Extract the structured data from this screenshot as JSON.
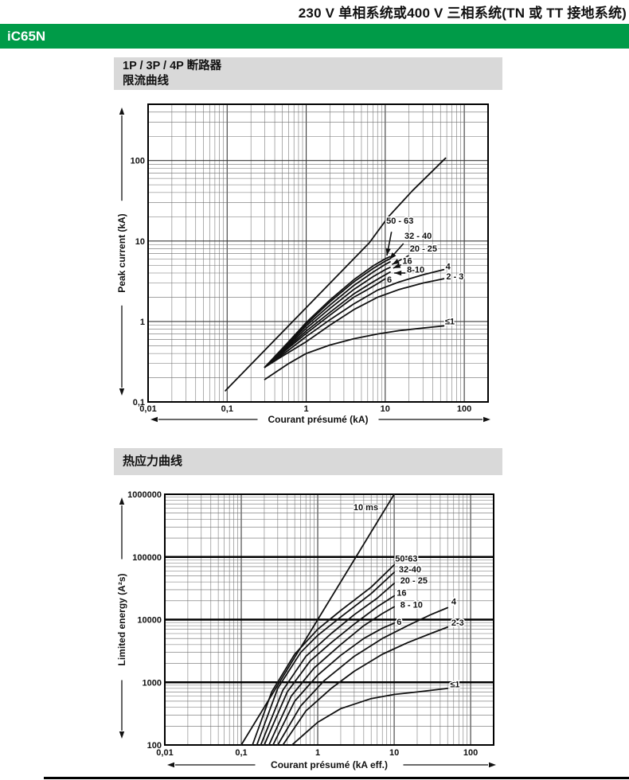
{
  "page": {
    "top_title": "230 V 单相系统或400 V 三相系统(TN 或 TT 接地系统)",
    "product_banner": "iC65N",
    "section1_title_line1": "1P / 3P / 4P 断路器",
    "section1_title_line2": "限流曲线",
    "section2_title": "热应力曲线",
    "colors": {
      "brand_green": "#009b48",
      "header_gray": "#d9d9d9",
      "curve_black": "#111111",
      "grid_minor": "#6e6e6e",
      "grid_major": "#3a3a3a"
    }
  },
  "chart_data": [
    {
      "type": "line",
      "title": "限流曲线 (current limiting curves)",
      "xlabel": "Courant présumé (kA)",
      "ylabel": "Peak current (kA)",
      "xscale": "log",
      "yscale": "log",
      "xlim": [
        0.01,
        200
      ],
      "ylim": [
        0.1,
        500
      ],
      "grid": true,
      "xticks": [
        {
          "v": 0.01,
          "label": "0,01"
        },
        {
          "v": 0.1,
          "label": "0,1"
        },
        {
          "v": 1,
          "label": "1"
        },
        {
          "v": 10,
          "label": "10"
        },
        {
          "v": 100,
          "label": "100"
        }
      ],
      "yticks": [
        {
          "v": 100,
          "label": "100"
        },
        {
          "v": 10,
          "label": "10"
        },
        {
          "v": 1,
          "label": "1"
        },
        {
          "v": 0.1,
          "label": "0,1"
        }
      ],
      "series": [
        {
          "name": "prospective-peak",
          "points": [
            [
              0.095,
              0.138
            ],
            [
              6.3,
              9.5
            ],
            [
              11,
              20
            ],
            [
              22,
              42
            ],
            [
              58,
              107
            ]
          ]
        },
        {
          "name": "50-63",
          "points": [
            [
              0.3,
              0.27
            ],
            [
              0.6,
              0.56
            ],
            [
              1,
              0.97
            ],
            [
              2,
              1.85
            ],
            [
              4,
              3.3
            ],
            [
              7,
              4.9
            ],
            [
              10,
              6.0
            ],
            [
              11.5,
              6.4
            ]
          ],
          "label": {
            "text": "50 - 63",
            "x": 10.3,
            "y": 16.5,
            "anchor": "start"
          },
          "arrow": [
            [
              12.0,
              13.0
            ],
            [
              10.5,
              6.6
            ]
          ]
        },
        {
          "name": "32-40",
          "points": [
            [
              0.3,
              0.27
            ],
            [
              0.6,
              0.55
            ],
            [
              1,
              0.93
            ],
            [
              2,
              1.75
            ],
            [
              4,
              3.1
            ],
            [
              7,
              4.55
            ],
            [
              10,
              5.6
            ],
            [
              11.5,
              6.0
            ]
          ],
          "label": {
            "text": "32 - 40",
            "x": 17.5,
            "y": 10.6,
            "anchor": "start"
          },
          "arrow": [
            [
              17.0,
              9.3
            ],
            [
              11.3,
              5.9
            ]
          ]
        },
        {
          "name": "20-25",
          "points": [
            [
              0.3,
              0.27
            ],
            [
              0.6,
              0.53
            ],
            [
              1,
              0.88
            ],
            [
              2,
              1.6
            ],
            [
              4,
              2.8
            ],
            [
              7,
              4.1
            ],
            [
              10,
              5.1
            ],
            [
              11.5,
              5.5
            ]
          ],
          "label": {
            "text": "20 - 25",
            "x": 20.5,
            "y": 7.4,
            "anchor": "start"
          },
          "arrow": [
            [
              19.8,
              6.6
            ],
            [
              12.2,
              5.1
            ]
          ]
        },
        {
          "name": "16",
          "points": [
            [
              0.3,
              0.27
            ],
            [
              0.6,
              0.51
            ],
            [
              1,
              0.82
            ],
            [
              2,
              1.45
            ],
            [
              4,
              2.5
            ],
            [
              7,
              3.6
            ],
            [
              10,
              4.4
            ],
            [
              11.5,
              4.7
            ]
          ],
          "label": {
            "text": "16",
            "x": 16.5,
            "y": 5.2,
            "anchor": "start"
          },
          "arrow": [
            [
              15.9,
              5.05
            ],
            [
              12.6,
              4.6
            ]
          ]
        },
        {
          "name": "8-10",
          "points": [
            [
              0.3,
              0.27
            ],
            [
              0.6,
              0.49
            ],
            [
              1,
              0.76
            ],
            [
              2,
              1.3
            ],
            [
              4,
              2.2
            ],
            [
              7,
              3.1
            ],
            [
              10,
              3.8
            ],
            [
              11.5,
              4.1
            ]
          ],
          "label": {
            "text": "8-10",
            "x": 18.8,
            "y": 4.05,
            "anchor": "start"
          },
          "arrow": [
            [
              18.0,
              4.0
            ],
            [
              13.0,
              4.0
            ]
          ]
        },
        {
          "name": "6",
          "points": [
            [
              0.3,
              0.27
            ],
            [
              0.6,
              0.47
            ],
            [
              1,
              0.71
            ],
            [
              2,
              1.2
            ],
            [
              4,
              2.0
            ],
            [
              6,
              2.5
            ],
            [
              8,
              2.95
            ],
            [
              10,
              3.4
            ]
          ],
          "label": {
            "text": "6",
            "x": 11.3,
            "y": 3.05,
            "anchor": "middle"
          }
        },
        {
          "name": "4",
          "points": [
            [
              0.3,
              0.27
            ],
            [
              0.6,
              0.44
            ],
            [
              1,
              0.65
            ],
            [
              2,
              1.05
            ],
            [
              4,
              1.65
            ],
            [
              8,
              2.45
            ],
            [
              15,
              3.1
            ],
            [
              30,
              3.8
            ],
            [
              55,
              4.4
            ]
          ],
          "label": {
            "text": "4",
            "x": 58,
            "y": 4.45,
            "anchor": "start"
          }
        },
        {
          "name": "2-3",
          "points": [
            [
              0.3,
              0.27
            ],
            [
              0.5,
              0.37
            ],
            [
              1,
              0.56
            ],
            [
              2,
              0.9
            ],
            [
              4,
              1.4
            ],
            [
              8,
              2.0
            ],
            [
              15,
              2.5
            ],
            [
              30,
              3.0
            ],
            [
              55,
              3.4
            ]
          ],
          "label": {
            "text": "2 - 3",
            "x": 59,
            "y": 3.35,
            "anchor": "start"
          }
        },
        {
          "name": "≤1",
          "points": [
            [
              0.3,
              0.19
            ],
            [
              0.6,
              0.3
            ],
            [
              1,
              0.4
            ],
            [
              2,
              0.51
            ],
            [
              4,
              0.61
            ],
            [
              8,
              0.7
            ],
            [
              15,
              0.77
            ],
            [
              30,
              0.83
            ],
            [
              55,
              0.88
            ]
          ],
          "label": {
            "text": "≤1",
            "x": 57,
            "y": 0.92,
            "anchor": "start"
          }
        }
      ]
    },
    {
      "type": "line",
      "title": "热应力曲线 (thermal stress curves)",
      "xlabel": "Courant présumé (kA eff.)",
      "ylabel": "Limited energy (A²s)",
      "xscale": "log",
      "yscale": "log",
      "xlim": [
        0.01,
        200
      ],
      "ylim": [
        100,
        1000000
      ],
      "grid": true,
      "bold_y_gridlines": [
        100000,
        10000,
        1000
      ],
      "xticks": [
        {
          "v": 0.01,
          "label": "0,01"
        },
        {
          "v": 0.1,
          "label": "0,1"
        },
        {
          "v": 1,
          "label": "1"
        },
        {
          "v": 10,
          "label": "10"
        },
        {
          "v": 100,
          "label": "100"
        }
      ],
      "yticks": [
        {
          "v": 1000000,
          "label": "1000000"
        },
        {
          "v": 100000,
          "label": "100000"
        },
        {
          "v": 10000,
          "label": "10000"
        },
        {
          "v": 1000,
          "label": "1000"
        },
        {
          "v": 100,
          "label": "100"
        }
      ],
      "series": [
        {
          "name": "10ms",
          "points": [
            [
              0.1,
              100
            ],
            [
              10,
              1000000
            ]
          ],
          "label": {
            "text": "10 ms",
            "x": 6.2,
            "y": 560000,
            "anchor": "end"
          }
        },
        {
          "name": "50-63",
          "points": [
            [
              0.14,
              100
            ],
            [
              0.25,
              700
            ],
            [
              0.5,
              2800
            ],
            [
              1,
              7000
            ],
            [
              2,
              14000
            ],
            [
              5,
              33000
            ],
            [
              10,
              75000
            ]
          ],
          "label": {
            "text": "50-63",
            "x": 10.3,
            "y": 85000,
            "anchor": "start"
          }
        },
        {
          "name": "32-40",
          "points": [
            [
              0.16,
              100
            ],
            [
              0.3,
              800
            ],
            [
              0.6,
              3000
            ],
            [
              1,
              5600
            ],
            [
              2,
              11000
            ],
            [
              5,
              26000
            ],
            [
              10,
              57000
            ]
          ],
          "label": {
            "text": "32-40",
            "x": 11.5,
            "y": 57000,
            "anchor": "start"
          }
        },
        {
          "name": "20-25",
          "points": [
            [
              0.18,
              100
            ],
            [
              0.35,
              750
            ],
            [
              0.7,
              2600
            ],
            [
              1.5,
              6000
            ],
            [
              3,
              12000
            ],
            [
              6,
              22000
            ],
            [
              10,
              38000
            ]
          ],
          "label": {
            "text": "20 - 25",
            "x": 12.0,
            "y": 38000,
            "anchor": "start"
          }
        },
        {
          "name": "16",
          "points": [
            [
              0.2,
              100
            ],
            [
              0.4,
              700
            ],
            [
              0.8,
              2200
            ],
            [
              1.5,
              4300
            ],
            [
              3,
              8500
            ],
            [
              6,
              16000
            ],
            [
              10,
              24000
            ]
          ],
          "label": {
            "text": "16",
            "x": 10.8,
            "y": 24000,
            "anchor": "start"
          }
        },
        {
          "name": "8-10",
          "points": [
            [
              0.23,
              100
            ],
            [
              0.45,
              600
            ],
            [
              0.9,
              1700
            ],
            [
              2,
              4000
            ],
            [
              4,
              8000
            ],
            [
              7,
              12500
            ],
            [
              10,
              16000
            ]
          ],
          "label": {
            "text": "8 - 10",
            "x": 12.0,
            "y": 15500,
            "anchor": "start"
          }
        },
        {
          "name": "6",
          "points": [
            [
              0.26,
              100
            ],
            [
              0.5,
              500
            ],
            [
              1,
              1300
            ],
            [
              2,
              2700
            ],
            [
              4,
              5000
            ],
            [
              7,
              7300
            ],
            [
              10,
              8800
            ]
          ],
          "label": {
            "text": "6",
            "x": 10.8,
            "y": 8300,
            "anchor": "start"
          }
        },
        {
          "name": "4",
          "points": [
            [
              0.3,
              100
            ],
            [
              0.6,
              420
            ],
            [
              1.2,
              1050
            ],
            [
              3,
              2600
            ],
            [
              7,
              5000
            ],
            [
              15,
              8000
            ],
            [
              30,
              12000
            ],
            [
              50,
              15500
            ]
          ],
          "label": {
            "text": "4",
            "x": 56,
            "y": 17500,
            "anchor": "start"
          }
        },
        {
          "name": "2-3",
          "points": [
            [
              0.35,
              100
            ],
            [
              0.7,
              350
            ],
            [
              1.5,
              800
            ],
            [
              3,
              1500
            ],
            [
              7,
              2800
            ],
            [
              15,
              4300
            ],
            [
              30,
              6000
            ],
            [
              50,
              7600
            ]
          ],
          "label": {
            "text": "2-3",
            "x": 56,
            "y": 8000,
            "anchor": "start"
          }
        },
        {
          "name": "≤1",
          "points": [
            [
              0.46,
              100
            ],
            [
              1,
              230
            ],
            [
              2,
              380
            ],
            [
              5,
              550
            ],
            [
              10,
              640
            ],
            [
              20,
              700
            ],
            [
              35,
              760
            ],
            [
              50,
              800
            ]
          ],
          "label": {
            "text": "≤1",
            "x": 54,
            "y": 830,
            "anchor": "start"
          }
        }
      ]
    }
  ]
}
